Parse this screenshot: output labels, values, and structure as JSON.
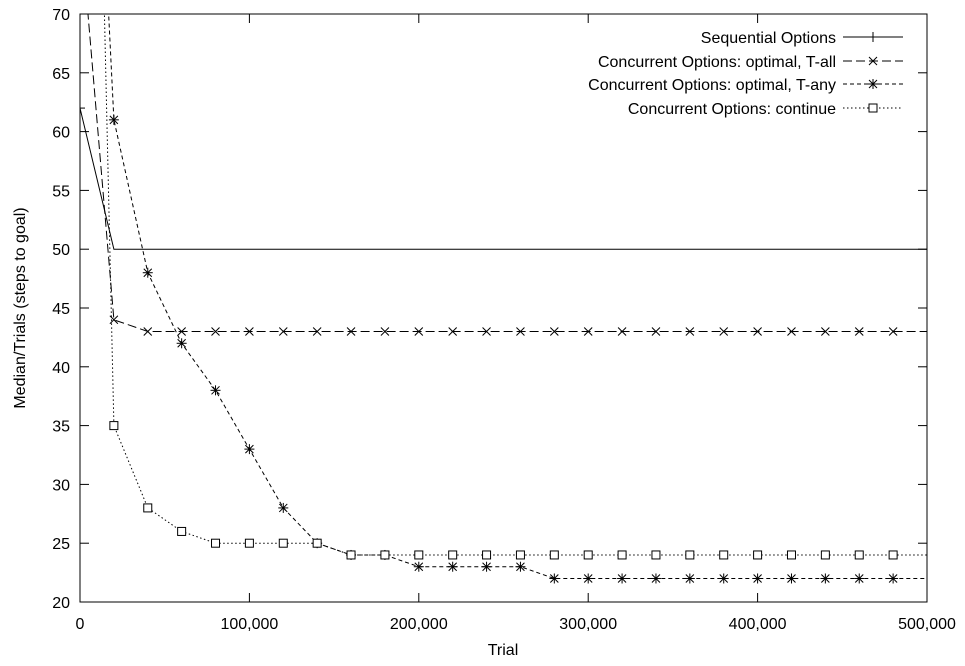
{
  "chart_data": {
    "type": "line",
    "xlabel": "Trial",
    "ylabel": "Median/Trials (steps to goal)",
    "xlim": [
      0,
      500000
    ],
    "ylim": [
      20,
      70
    ],
    "x_ticks": [
      {
        "value": 0,
        "label": "0"
      },
      {
        "value": 100000,
        "label": "100,000"
      },
      {
        "value": 200000,
        "label": "200,000"
      },
      {
        "value": 300000,
        "label": "300,000"
      },
      {
        "value": 400000,
        "label": "400,000"
      },
      {
        "value": 500000,
        "label": "500,000"
      }
    ],
    "y_ticks": [
      {
        "value": 20,
        "label": "20"
      },
      {
        "value": 25,
        "label": "25"
      },
      {
        "value": 30,
        "label": "30"
      },
      {
        "value": 35,
        "label": "35"
      },
      {
        "value": 40,
        "label": "40"
      },
      {
        "value": 45,
        "label": "45"
      },
      {
        "value": 50,
        "label": "50"
      },
      {
        "value": 55,
        "label": "55"
      },
      {
        "value": 60,
        "label": "60"
      },
      {
        "value": 65,
        "label": "65"
      },
      {
        "value": 70,
        "label": "70"
      }
    ],
    "grid": false,
    "legend_position": "top-right",
    "series": [
      {
        "name": "Sequential Options",
        "marker": "plus",
        "dash": "solid",
        "points": [
          [
            0,
            62
          ],
          [
            20000,
            50
          ],
          [
            40000,
            50
          ],
          [
            60000,
            50
          ],
          [
            80000,
            50
          ],
          [
            100000,
            50
          ],
          [
            120000,
            50
          ],
          [
            140000,
            50
          ],
          [
            160000,
            50
          ],
          [
            180000,
            50
          ],
          [
            200000,
            50
          ],
          [
            220000,
            50
          ],
          [
            240000,
            50
          ],
          [
            260000,
            50
          ],
          [
            280000,
            50
          ],
          [
            300000,
            50
          ],
          [
            320000,
            50
          ],
          [
            340000,
            50
          ],
          [
            360000,
            50
          ],
          [
            380000,
            50
          ],
          [
            400000,
            50
          ],
          [
            420000,
            50
          ],
          [
            440000,
            50
          ],
          [
            460000,
            50
          ],
          [
            480000,
            50
          ],
          [
            500000,
            50
          ]
        ],
        "markers_at": [
          0
        ]
      },
      {
        "name": "Concurrent Options: optimal, T-all",
        "marker": "cross",
        "dash": "dashed",
        "points": [
          [
            0,
            78
          ],
          [
            20000,
            44
          ],
          [
            40000,
            43
          ],
          [
            60000,
            43
          ],
          [
            80000,
            43
          ],
          [
            100000,
            43
          ],
          [
            120000,
            43
          ],
          [
            140000,
            43
          ],
          [
            160000,
            43
          ],
          [
            180000,
            43
          ],
          [
            200000,
            43
          ],
          [
            220000,
            43
          ],
          [
            240000,
            43
          ],
          [
            260000,
            43
          ],
          [
            280000,
            43
          ],
          [
            300000,
            43
          ],
          [
            320000,
            43
          ],
          [
            340000,
            43
          ],
          [
            360000,
            43
          ],
          [
            380000,
            43
          ],
          [
            400000,
            43
          ],
          [
            420000,
            43
          ],
          [
            440000,
            43
          ],
          [
            460000,
            43
          ],
          [
            480000,
            43
          ],
          [
            500000,
            43
          ]
        ],
        "markers_at": [
          1,
          2,
          3,
          4,
          5,
          6,
          7,
          8,
          9,
          10,
          11,
          12,
          13,
          14,
          15,
          16,
          17,
          18,
          19,
          20,
          21,
          22,
          23,
          24
        ]
      },
      {
        "name": "Concurrent Options: optimal, T-any",
        "marker": "star",
        "dash": "short-dashed",
        "points": [
          [
            10000,
            90
          ],
          [
            20000,
            61
          ],
          [
            40000,
            48
          ],
          [
            60000,
            42
          ],
          [
            80000,
            38
          ],
          [
            100000,
            33
          ],
          [
            120000,
            28
          ],
          [
            140000,
            25
          ],
          [
            160000,
            24
          ],
          [
            180000,
            24
          ],
          [
            200000,
            23
          ],
          [
            220000,
            23
          ],
          [
            240000,
            23
          ],
          [
            260000,
            23
          ],
          [
            280000,
            22
          ],
          [
            300000,
            22
          ],
          [
            320000,
            22
          ],
          [
            340000,
            22
          ],
          [
            360000,
            22
          ],
          [
            380000,
            22
          ],
          [
            400000,
            22
          ],
          [
            420000,
            22
          ],
          [
            440000,
            22
          ],
          [
            460000,
            22
          ],
          [
            480000,
            22
          ],
          [
            500000,
            22
          ]
        ],
        "markers_at": [
          1,
          2,
          3,
          4,
          5,
          6,
          7,
          8,
          9,
          10,
          11,
          12,
          13,
          14,
          15,
          16,
          17,
          18,
          19,
          20,
          21,
          22,
          23,
          24
        ]
      },
      {
        "name": "Concurrent Options: continue",
        "marker": "square",
        "dash": "dotted",
        "points": [
          [
            8000,
            110
          ],
          [
            20000,
            35
          ],
          [
            40000,
            28
          ],
          [
            60000,
            26
          ],
          [
            80000,
            25
          ],
          [
            100000,
            25
          ],
          [
            120000,
            25
          ],
          [
            140000,
            25
          ],
          [
            160000,
            24
          ],
          [
            180000,
            24
          ],
          [
            200000,
            24
          ],
          [
            220000,
            24
          ],
          [
            240000,
            24
          ],
          [
            260000,
            24
          ],
          [
            280000,
            24
          ],
          [
            300000,
            24
          ],
          [
            320000,
            24
          ],
          [
            340000,
            24
          ],
          [
            360000,
            24
          ],
          [
            380000,
            24
          ],
          [
            400000,
            24
          ],
          [
            420000,
            24
          ],
          [
            440000,
            24
          ],
          [
            460000,
            24
          ],
          [
            480000,
            24
          ],
          [
            500000,
            24
          ]
        ],
        "markers_at": [
          1,
          2,
          3,
          4,
          5,
          6,
          7,
          8,
          9,
          10,
          11,
          12,
          13,
          14,
          15,
          16,
          17,
          18,
          19,
          20,
          21,
          22,
          23,
          24
        ]
      }
    ]
  }
}
